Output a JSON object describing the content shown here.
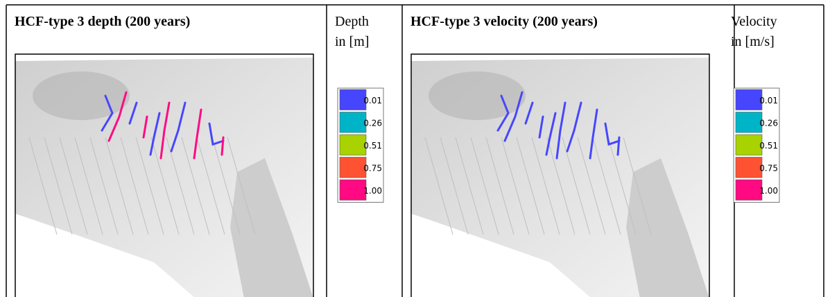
{
  "panels": [
    {
      "title": "HCF-type 3 depth (200 years)",
      "legend_title": [
        "Depth",
        "in [m]"
      ],
      "legend": [
        {
          "label": "0.01",
          "color": "#4646ff"
        },
        {
          "label": "0.26",
          "color": "#00b4c8"
        },
        {
          "label": "0.51",
          "color": "#a8d200"
        },
        {
          "label": "0.75",
          "color": "#ff5232"
        },
        {
          "label": "1.00",
          "color": "#ff0a82"
        }
      ]
    },
    {
      "title": "HCF-type 3 velocity (200 years)",
      "legend_title": [
        "Velocity",
        "in [m/s]"
      ],
      "legend": [
        {
          "label": "0.01",
          "color": "#4646ff"
        },
        {
          "label": "0.26",
          "color": "#00b4c8"
        },
        {
          "label": "0.51",
          "color": "#a8d200"
        },
        {
          "label": "0.75",
          "color": "#ff5232"
        },
        {
          "label": "1.00",
          "color": "#ff0a82"
        }
      ]
    }
  ]
}
